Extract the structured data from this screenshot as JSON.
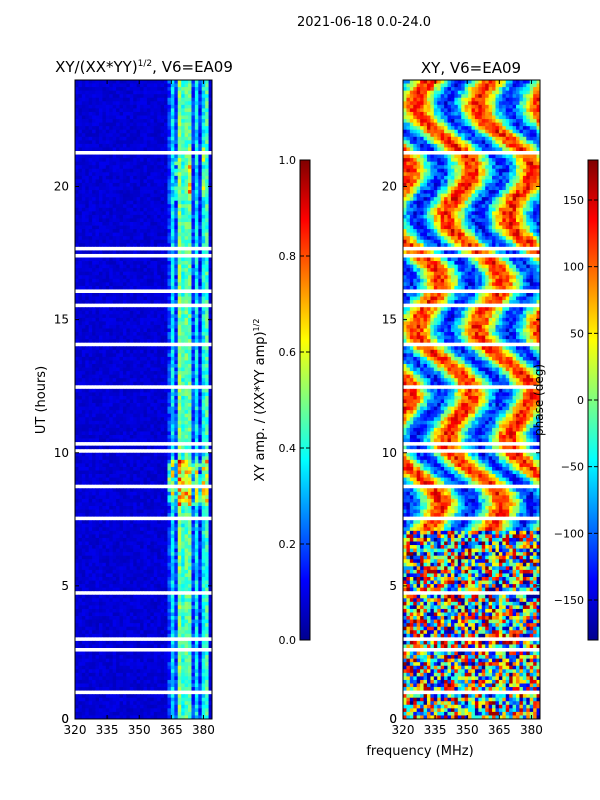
{
  "suptitle": "2021-06-18 0.0-24.0",
  "xlabel_shared": "frequency (MHz)",
  "chart_data": [
    {
      "type": "heatmap",
      "title_main": "XY/(XX*YY)",
      "title_sup": "1/2",
      "title_rest": ", V6=EA09",
      "ylabel": "UT (hours)",
      "xlim": [
        320,
        384
      ],
      "ylim": [
        0,
        24
      ],
      "xticks": [
        320,
        335,
        350,
        365,
        380
      ],
      "yticks": [
        0,
        5,
        10,
        15,
        20
      ],
      "colorbar": {
        "label_main": "XY amp. / (XX*YY amp)",
        "label_sup": "1/2",
        "range": [
          0.0,
          1.0
        ],
        "ticks": [
          "0.0",
          "0.2",
          "0.4",
          "0.6",
          "0.8",
          "1.0"
        ],
        "cmap": "jet"
      }
    },
    {
      "type": "heatmap",
      "title": "XY, V6=EA09",
      "xlim": [
        320,
        384
      ],
      "ylim": [
        0,
        24
      ],
      "xticks": [
        320,
        335,
        350,
        365,
        380
      ],
      "yticks": [
        0,
        5,
        10,
        15,
        20
      ],
      "colorbar": {
        "label": "phase (deg)",
        "range": [
          -180,
          180
        ],
        "ticks": [
          "150",
          "100",
          "50",
          "0",
          "−50",
          "−100",
          "−150"
        ],
        "cmap": "jet"
      }
    }
  ]
}
